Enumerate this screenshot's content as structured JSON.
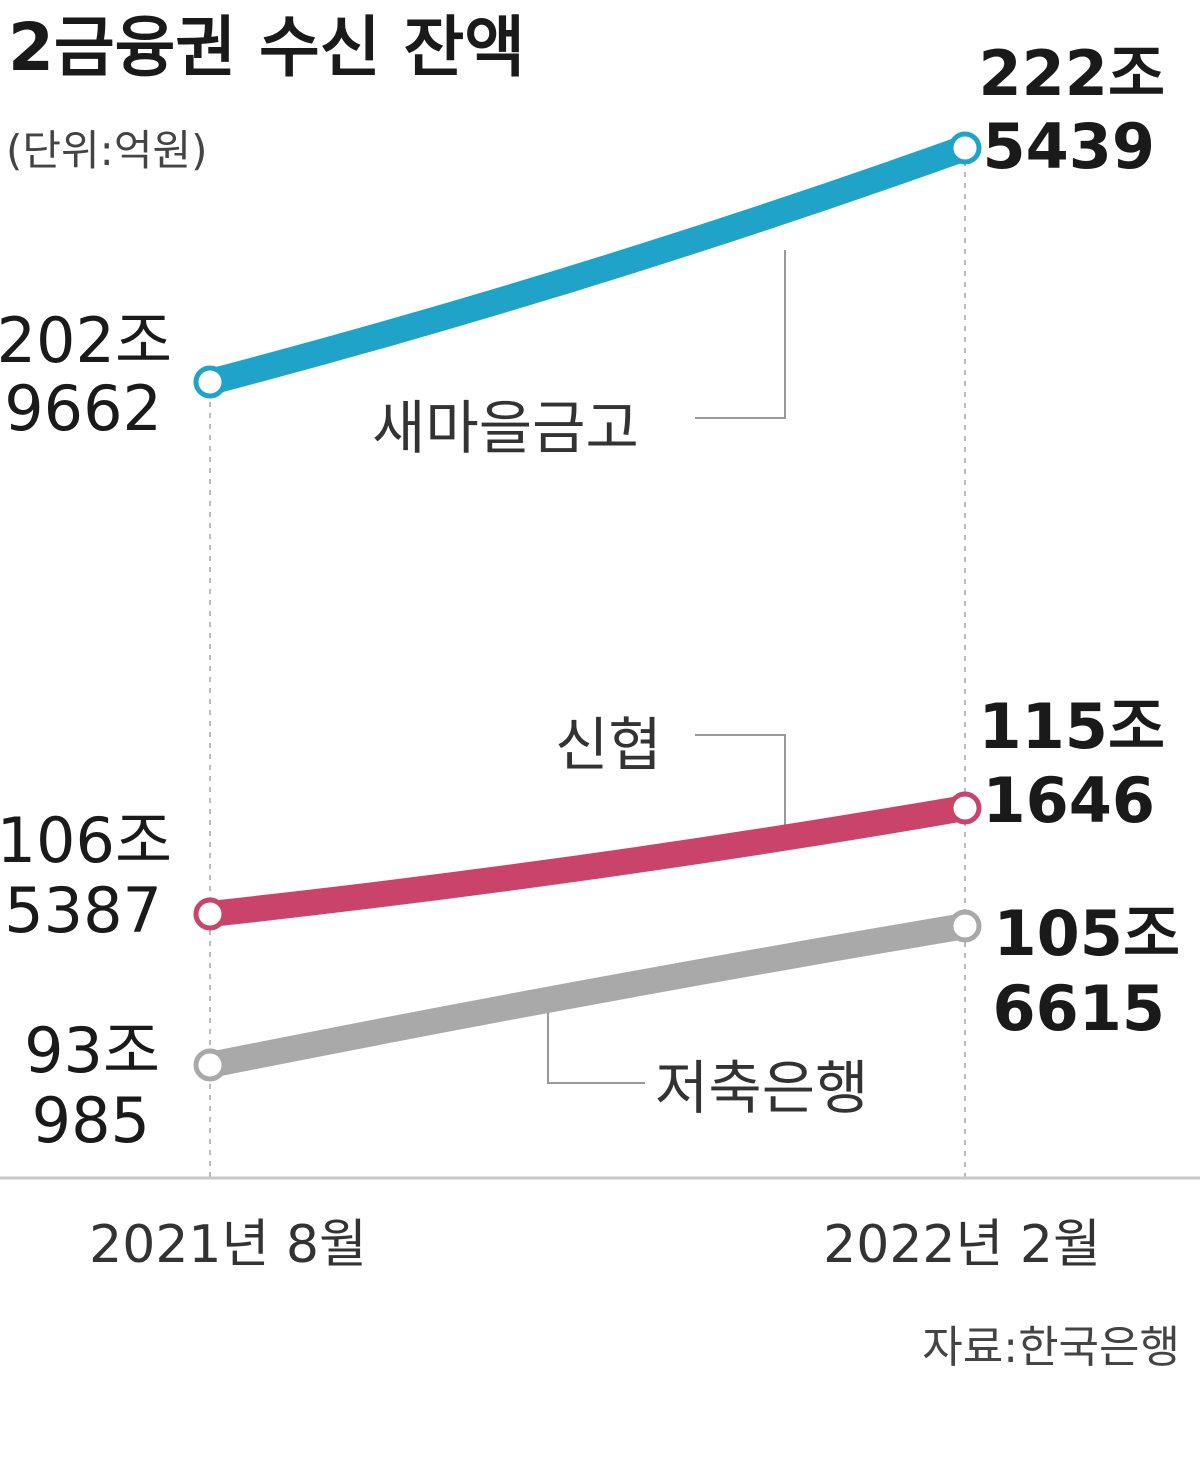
{
  "chart_data": {
    "type": "line",
    "title": "2금융권 수신 잔액",
    "unit": "(단위:억원)",
    "categories": [
      "2021년 8월",
      "2022년 2월"
    ],
    "series": [
      {
        "name": "새마을금고",
        "values": [
          2029662,
          2225439
        ],
        "start_label": [
          "202조",
          "9662"
        ],
        "end_label": [
          "222조",
          "5439"
        ],
        "color": "#1fa3c9"
      },
      {
        "name": "신협",
        "values": [
          1065387,
          1151646
        ],
        "start_label": [
          "106조",
          "5387"
        ],
        "end_label": [
          "115조",
          "1646"
        ],
        "color": "#c9436a"
      },
      {
        "name": "저축은행",
        "values": [
          930985,
          1056615
        ],
        "start_label": [
          "93조",
          "985"
        ],
        "end_label": [
          "105조",
          "6615"
        ],
        "color": "#a9a9a9"
      }
    ],
    "source": "자료:한국은행"
  }
}
